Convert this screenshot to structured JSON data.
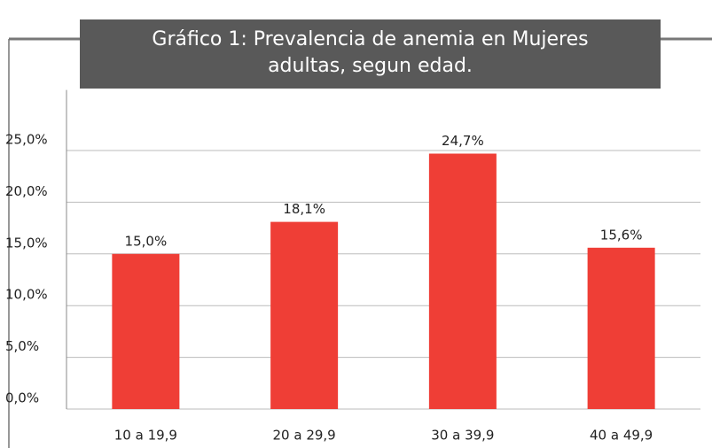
{
  "chart_data": {
    "type": "bar",
    "title": "Gráfico 1: Prevalencia de anemia en Mujeres adultas, segun edad.",
    "categories": [
      "10 a 19,9",
      "20 a 29,9",
      "30 a 39,9",
      "40 a 49,9"
    ],
    "values": [
      15.0,
      18.1,
      24.7,
      15.6
    ],
    "value_labels": [
      "15,0%",
      "18,1%",
      "24,7%",
      "15,6%"
    ],
    "color": "#ef3e36",
    "ylim": [
      0,
      30
    ],
    "yticks": [
      {
        "value": 0,
        "label": "0,0%"
      },
      {
        "value": 5,
        "label": "5,0%"
      },
      {
        "value": 10,
        "label": "10,0%"
      },
      {
        "value": 15,
        "label": "15,0%"
      },
      {
        "value": 20,
        "label": "20,0%"
      },
      {
        "value": 25,
        "label": "25,0%"
      }
    ],
    "grid": true
  }
}
